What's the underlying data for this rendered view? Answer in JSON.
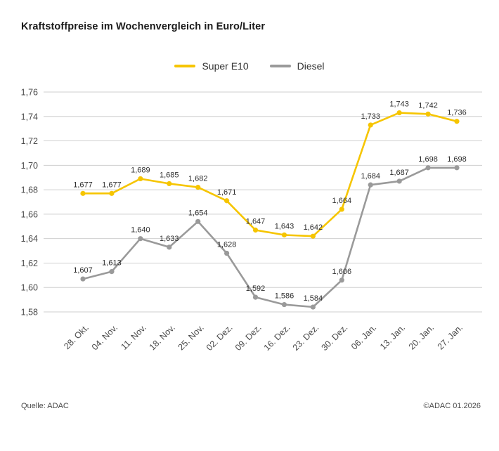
{
  "title": "Kraftstoffpreise im Wochenvergleich in Euro/Liter",
  "legend": [
    {
      "label": "Super E10",
      "color": "#F6C500"
    },
    {
      "label": "Diesel",
      "color": "#9A9A9A"
    }
  ],
  "footer": {
    "source": "Quelle: ADAC",
    "copyright": "©ADAC 01.2026"
  },
  "chart_data": {
    "type": "line",
    "title": "Kraftstoffpreise im Wochenvergleich in Euro/Liter",
    "categories": [
      "28. Okt.",
      "04. Nov.",
      "11. Nov.",
      "18. Nov.",
      "25. Nov.",
      "02. Dez.",
      "09. Dez.",
      "16. Dez.",
      "23. Dez.",
      "30. Dez.",
      "06. Jan.",
      "13. Jan.",
      "20. Jan.",
      "27. Jan."
    ],
    "series": [
      {
        "name": "Super E10",
        "color": "#F6C500",
        "values": [
          1.677,
          1.677,
          1.689,
          1.685,
          1.682,
          1.671,
          1.647,
          1.643,
          1.642,
          1.664,
          1.733,
          1.743,
          1.742,
          1.736
        ]
      },
      {
        "name": "Diesel",
        "color": "#9A9A9A",
        "values": [
          1.607,
          1.613,
          1.64,
          1.633,
          1.654,
          1.628,
          1.592,
          1.586,
          1.584,
          1.606,
          1.684,
          1.687,
          1.698,
          1.698
        ]
      }
    ],
    "xlabel": "",
    "ylabel": "",
    "ylim": [
      1.58,
      1.76
    ],
    "ytick_step": 0.02,
    "grid": true,
    "gridline_color": "#cfcfcf",
    "legend_position": "top-center",
    "decimal_separator": ",",
    "value_label_decimals": 3,
    "ytick_decimals": 2
  }
}
